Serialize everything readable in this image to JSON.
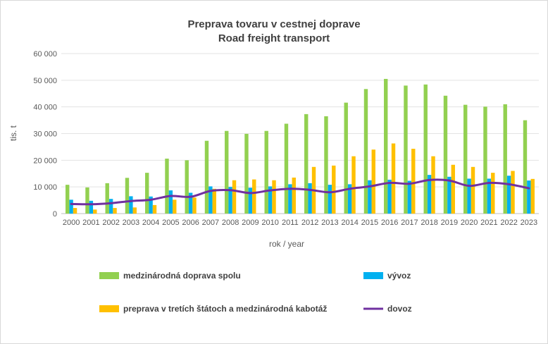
{
  "chart_data": {
    "type": "bar",
    "title": "Preprava tovaru v cestnej doprave",
    "subtitle": "Road freight transport",
    "xlabel": "rok / year",
    "ylabel": "tis. t",
    "ylim": [
      0,
      60000
    ],
    "yticks": [
      0,
      10000,
      20000,
      30000,
      40000,
      50000,
      60000
    ],
    "ytick_labels": [
      "0",
      "10 000",
      "20 000",
      "30 000",
      "40 000",
      "50 000",
      "60 000"
    ],
    "grid": "horizontal",
    "legend_position": "bottom",
    "categories": [
      "2000",
      "2001",
      "2002",
      "2003",
      "2004",
      "2005",
      "2006",
      "2007",
      "2008",
      "2009",
      "2010",
      "2011",
      "2012",
      "2013",
      "2014",
      "2015",
      "2016",
      "2017",
      "2018",
      "2019",
      "2020",
      "2021",
      "2022",
      "2023"
    ],
    "series": [
      {
        "name": "medzinárodná doprava spolu",
        "type": "bar",
        "color": "#92d050",
        "values": [
          10800,
          9800,
          11400,
          13400,
          15300,
          20600,
          20000,
          27300,
          31000,
          29900,
          31000,
          33700,
          37300,
          36500,
          41600,
          46700,
          50500,
          48000,
          48400,
          44200,
          40800,
          40100,
          41000,
          35000
        ]
      },
      {
        "name": "vývoz",
        "type": "bar",
        "color": "#00b0f0",
        "values": [
          5200,
          4800,
          5500,
          6500,
          6400,
          8700,
          7800,
          10200,
          10000,
          9700,
          10200,
          11000,
          11400,
          10800,
          11000,
          12500,
          12700,
          12300,
          14500,
          13800,
          13100,
          13100,
          14200,
          12400
        ]
      },
      {
        "name": "preprava v tretích štátoch a medzinárodná kabotáž",
        "type": "bar",
        "color": "#ffc000",
        "values": [
          2100,
          1500,
          2100,
          2300,
          3200,
          5200,
          6000,
          9300,
          12500,
          12800,
          12500,
          13500,
          17500,
          18000,
          21500,
          24000,
          26300,
          24300,
          21500,
          18300,
          17500,
          15300,
          16000,
          13000
        ]
      },
      {
        "name": "dovoz",
        "type": "line",
        "color": "#7030a0",
        "values": [
          3600,
          3500,
          3900,
          4700,
          5200,
          6600,
          6300,
          8500,
          8800,
          7700,
          8700,
          9300,
          8900,
          8000,
          9300,
          10200,
          11500,
          11200,
          12600,
          12400,
          10400,
          11500,
          11000,
          9500
        ]
      }
    ]
  }
}
